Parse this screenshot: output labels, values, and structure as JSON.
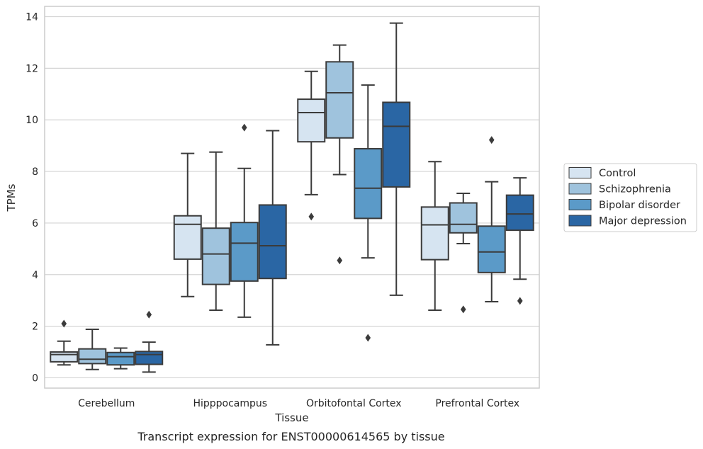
{
  "chart_data": {
    "type": "box",
    "title": "",
    "caption": "Transcript expression for ENST00000614565 by tissue",
    "xlabel": "Tissue",
    "ylabel": "TPMs",
    "ylim": [
      -0.4,
      14.4
    ],
    "yticks": [
      0,
      2,
      4,
      6,
      8,
      10,
      12,
      14
    ],
    "grid": "horizontal",
    "legend_position": "right",
    "categories": [
      "Cerebellum",
      "Hipppocampus",
      "Orbitofontal Cortex",
      "Prefrontal Cortex"
    ],
    "series": [
      {
        "name": "Control",
        "color": "#d6e4f1",
        "boxes": [
          {
            "whislo": 0.5,
            "q1": 0.62,
            "med": 0.9,
            "q3": 1.0,
            "whishi": 1.42,
            "fliers": [
              2.1
            ]
          },
          {
            "whislo": 3.15,
            "q1": 4.6,
            "med": 5.95,
            "q3": 6.28,
            "whishi": 8.7,
            "fliers": []
          },
          {
            "whislo": 7.1,
            "q1": 9.15,
            "med": 10.28,
            "q3": 10.8,
            "whishi": 11.88,
            "fliers": [
              6.25
            ]
          },
          {
            "whislo": 2.62,
            "q1": 4.58,
            "med": 5.93,
            "q3": 6.62,
            "whishi": 8.38,
            "fliers": []
          }
        ]
      },
      {
        "name": "Schizophrenia",
        "color": "#9fc3dd",
        "boxes": [
          {
            "whislo": 0.32,
            "q1": 0.55,
            "med": 0.72,
            "q3": 1.12,
            "whishi": 1.88,
            "fliers": []
          },
          {
            "whislo": 2.62,
            "q1": 3.62,
            "med": 4.8,
            "q3": 5.8,
            "whishi": 8.75,
            "fliers": []
          },
          {
            "whislo": 7.88,
            "q1": 9.3,
            "med": 11.05,
            "q3": 12.25,
            "whishi": 12.9,
            "fliers": [
              4.55
            ]
          },
          {
            "whislo": 5.2,
            "q1": 5.62,
            "med": 5.95,
            "q3": 6.78,
            "whishi": 7.15,
            "fliers": [
              2.65
            ]
          }
        ]
      },
      {
        "name": "Bipolar disorder",
        "color": "#5b9ac8",
        "boxes": [
          {
            "whislo": 0.35,
            "q1": 0.5,
            "med": 0.82,
            "q3": 0.98,
            "whishi": 1.15,
            "fliers": []
          },
          {
            "whislo": 2.35,
            "q1": 3.75,
            "med": 5.22,
            "q3": 6.02,
            "whishi": 8.12,
            "fliers": [
              9.7
            ]
          },
          {
            "whislo": 4.65,
            "q1": 6.18,
            "med": 7.35,
            "q3": 8.88,
            "whishi": 11.35,
            "fliers": [
              1.55
            ]
          },
          {
            "whislo": 2.95,
            "q1": 4.08,
            "med": 4.88,
            "q3": 5.88,
            "whishi": 7.6,
            "fliers": [
              9.22
            ]
          }
        ]
      },
      {
        "name": "Major depression",
        "color": "#2a66a4",
        "boxes": [
          {
            "whislo": 0.22,
            "q1": 0.52,
            "med": 0.9,
            "q3": 1.02,
            "whishi": 1.38,
            "fliers": [
              2.45
            ]
          },
          {
            "whislo": 1.28,
            "q1": 3.85,
            "med": 5.12,
            "q3": 6.7,
            "whishi": 9.58,
            "fliers": []
          },
          {
            "whislo": 3.2,
            "q1": 7.4,
            "med": 9.75,
            "q3": 10.68,
            "whishi": 13.75,
            "fliers": []
          },
          {
            "whislo": 3.82,
            "q1": 5.72,
            "med": 6.35,
            "q3": 7.08,
            "whishi": 7.75,
            "fliers": [
              2.98
            ]
          }
        ]
      }
    ]
  }
}
